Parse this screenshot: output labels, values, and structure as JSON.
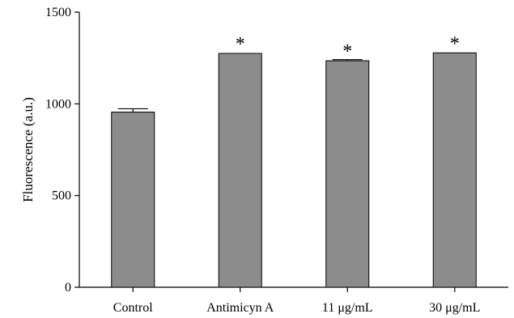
{
  "chart_data": {
    "type": "bar",
    "categories": [
      "Control",
      "Antimicyn A",
      "11 μg/mL",
      "30 μg/mL"
    ],
    "values": [
      955,
      1275,
      1235,
      1278
    ],
    "errors": [
      18,
      0,
      6,
      0
    ],
    "significance": [
      "",
      "*",
      "*",
      "*"
    ],
    "title": "",
    "xlabel": "",
    "ylabel": "Fluorescence (a.u.)",
    "ylim": [
      0,
      1500
    ],
    "yticks": [
      0,
      500,
      1000,
      1500
    ],
    "grid": false,
    "legend": "none",
    "colors": {
      "bar": "#8c8c8c",
      "axis": "#000000"
    }
  }
}
